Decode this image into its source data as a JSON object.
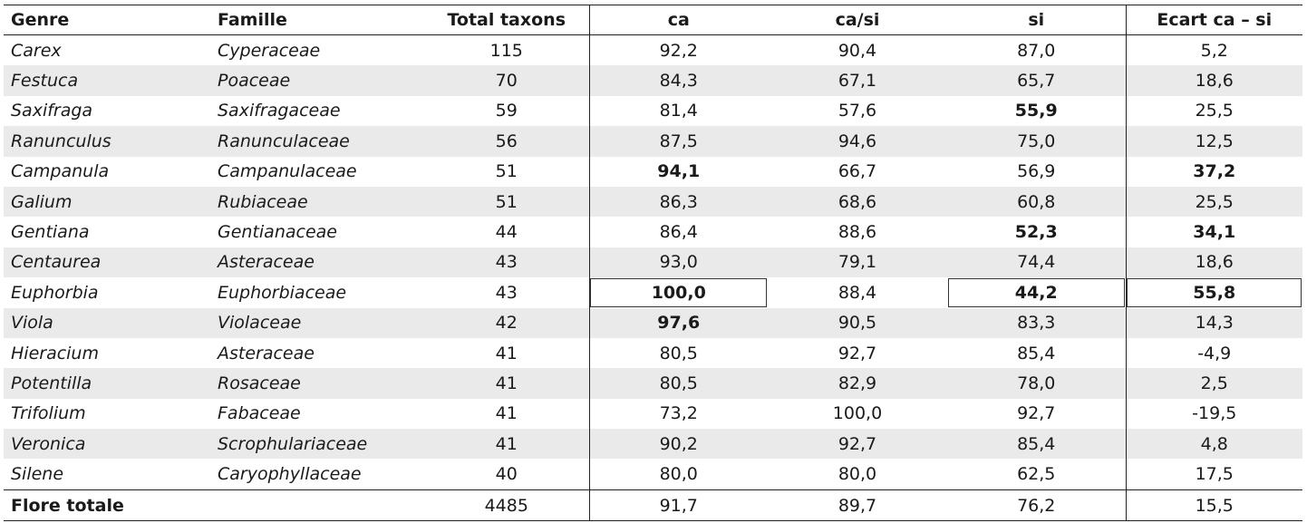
{
  "table": {
    "headers": [
      "Genre",
      "Famille",
      "Total taxons",
      "ca",
      "ca/si",
      "si",
      "Ecart ca – si"
    ],
    "rows": [
      {
        "genre": "Carex",
        "famille": "Cyperaceae",
        "total": "115",
        "ca": "92,2",
        "casi": "90,4",
        "si": "87,0",
        "ecart": "5,2"
      },
      {
        "genre": "Festuca",
        "famille": "Poaceae",
        "total": "70",
        "ca": "84,3",
        "casi": "67,1",
        "si": "65,7",
        "ecart": "18,6"
      },
      {
        "genre": "Saxifraga",
        "famille": "Saxifragaceae",
        "total": "59",
        "ca": "81,4",
        "casi": "57,6",
        "si": "55,9",
        "ecart": "25,5"
      },
      {
        "genre": "Ranunculus",
        "famille": "Ranunculaceae",
        "total": "56",
        "ca": "87,5",
        "casi": "94,6",
        "si": "75,0",
        "ecart": "12,5"
      },
      {
        "genre": "Campanula",
        "famille": "Campanulaceae",
        "total": "51",
        "ca": "94,1",
        "casi": "66,7",
        "si": "56,9",
        "ecart": "37,2"
      },
      {
        "genre": "Galium",
        "famille": "Rubiaceae",
        "total": "51",
        "ca": "86,3",
        "casi": "68,6",
        "si": "60,8",
        "ecart": "25,5"
      },
      {
        "genre": "Gentiana",
        "famille": "Gentianaceae",
        "total": "44",
        "ca": "86,4",
        "casi": "88,6",
        "si": "52,3",
        "ecart": "34,1"
      },
      {
        "genre": "Centaurea",
        "famille": "Asteraceae",
        "total": "43",
        "ca": "93,0",
        "casi": "79,1",
        "si": "74,4",
        "ecart": "18,6"
      },
      {
        "genre": "Euphorbia",
        "famille": "Euphorbiaceae",
        "total": "43",
        "ca": "100,0",
        "casi": "88,4",
        "si": "44,2",
        "ecart": "55,8"
      },
      {
        "genre": "Viola",
        "famille": "Violaceae",
        "total": "42",
        "ca": "97,6",
        "casi": "90,5",
        "si": "83,3",
        "ecart": "14,3"
      },
      {
        "genre": "Hieracium",
        "famille": "Asteraceae",
        "total": "41",
        "ca": "80,5",
        "casi": "92,7",
        "si": "85,4",
        "ecart": "-4,9"
      },
      {
        "genre": "Potentilla",
        "famille": "Rosaceae",
        "total": "41",
        "ca": "80,5",
        "casi": "82,9",
        "si": "78,0",
        "ecart": "2,5"
      },
      {
        "genre": "Trifolium",
        "famille": "Fabaceae",
        "total": "41",
        "ca": "73,2",
        "casi": "100,0",
        "si": "92,7",
        "ecart": "-19,5"
      },
      {
        "genre": "Veronica",
        "famille": "Scrophulariaceae",
        "total": "41",
        "ca": "90,2",
        "casi": "92,7",
        "si": "85,4",
        "ecart": "4,8"
      },
      {
        "genre": "Silene",
        "famille": "Caryophyllaceae",
        "total": "40",
        "ca": "80,0",
        "casi": "80,0",
        "si": "62,5",
        "ecart": "17,5"
      }
    ],
    "total_row": {
      "genre": "Flore totale",
      "famille": "",
      "total": "4485",
      "ca": "91,7",
      "casi": "89,7",
      "si": "76,2",
      "ecart": "15,5"
    }
  }
}
